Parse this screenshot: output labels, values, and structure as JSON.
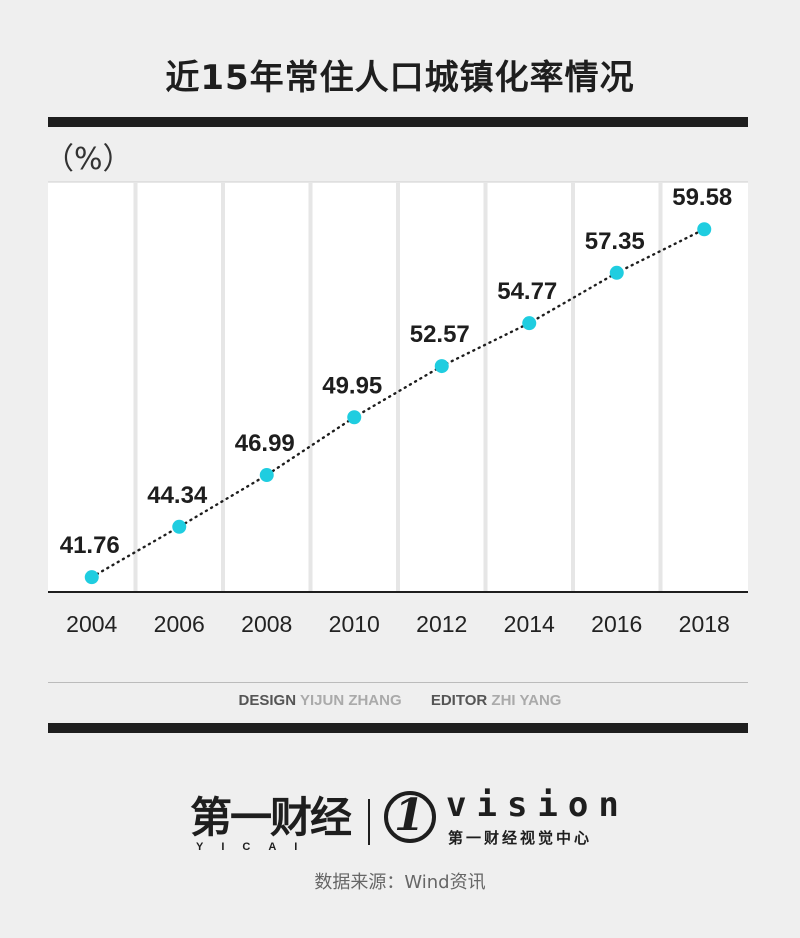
{
  "title": "近15年常住人口城镇化率情况",
  "unit": "（%）",
  "chart_data": {
    "type": "line",
    "title": "近15年常住人口城镇化率情况",
    "ylabel": "（%）",
    "xlabel": "",
    "categories": [
      "2004",
      "2006",
      "2008",
      "2010",
      "2012",
      "2014",
      "2016",
      "2018"
    ],
    "series": [
      {
        "values": [
          41.76,
          44.34,
          46.99,
          49.95,
          52.57,
          54.77,
          57.35,
          59.58
        ],
        "labels": [
          "41.76",
          "44.34",
          "46.99",
          "49.95",
          "52.57",
          "54.77",
          "57.35",
          "59.58"
        ]
      }
    ],
    "ylim": [
      41.0,
      62.0
    ],
    "grid": true,
    "legend": "none",
    "marker_color": "#1fcde0",
    "line_style": "dotted"
  },
  "credits": {
    "design_key": "DESIGN",
    "design_name": "YIJUN ZHANG",
    "editor_key": "EDITOR",
    "editor_name": "ZHI YANG"
  },
  "logos": {
    "yicai_cn": "第一财经",
    "yicai_en": "YICAI",
    "vision_mark": "1",
    "vision_word": "vision",
    "vision_cn": "第一财经视觉中心"
  },
  "source": "数据来源：Wind资讯"
}
